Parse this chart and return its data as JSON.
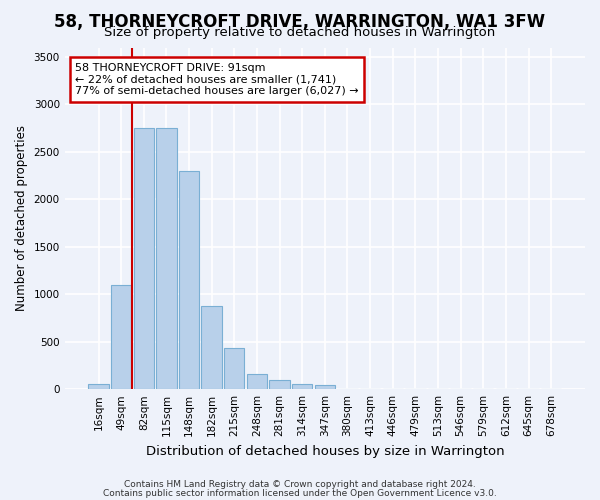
{
  "title1": "58, THORNEYCROFT DRIVE, WARRINGTON, WA1 3FW",
  "title2": "Size of property relative to detached houses in Warrington",
  "xlabel": "Distribution of detached houses by size in Warrington",
  "ylabel": "Number of detached properties",
  "footer1": "Contains HM Land Registry data © Crown copyright and database right 2024.",
  "footer2": "Contains public sector information licensed under the Open Government Licence v3.0.",
  "bin_labels": [
    "16sqm",
    "49sqm",
    "82sqm",
    "115sqm",
    "148sqm",
    "182sqm",
    "215sqm",
    "248sqm",
    "281sqm",
    "314sqm",
    "347sqm",
    "380sqm",
    "413sqm",
    "446sqm",
    "479sqm",
    "513sqm",
    "546sqm",
    "579sqm",
    "612sqm",
    "645sqm",
    "678sqm"
  ],
  "bar_values": [
    50,
    1100,
    2750,
    2750,
    2300,
    880,
    430,
    160,
    95,
    55,
    40,
    0,
    0,
    0,
    0,
    0,
    0,
    0,
    0,
    0,
    0
  ],
  "bar_color": "#b8d0ea",
  "bar_edge_color": "#7aafd4",
  "property_bin_index": 2,
  "red_line_color": "#cc0000",
  "annotation_line1": "58 THORNEYCROFT DRIVE: 91sqm",
  "annotation_line2": "← 22% of detached houses are smaller (1,741)",
  "annotation_line3": "77% of semi-detached houses are larger (6,027) →",
  "annotation_box_color": "#ffffff",
  "annotation_border_color": "#cc0000",
  "ylim": [
    0,
    3600
  ],
  "yticks": [
    0,
    500,
    1000,
    1500,
    2000,
    2500,
    3000,
    3500
  ],
  "background_color": "#eef2fa",
  "grid_color": "#ffffff",
  "title1_fontsize": 12,
  "title2_fontsize": 9.5,
  "ylabel_fontsize": 8.5,
  "xlabel_fontsize": 9.5,
  "tick_fontsize": 7.5,
  "footer_fontsize": 6.5
}
